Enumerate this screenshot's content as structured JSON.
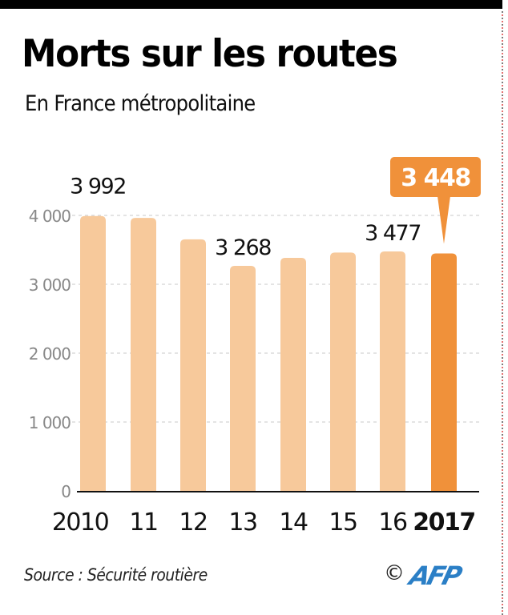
{
  "header": {
    "title": "Morts sur les routes",
    "subtitle": "En France métropolitaine"
  },
  "footer": {
    "source": "Source : Sécurité routière",
    "copyright_symbol": "©",
    "logo_text": "AFP",
    "logo_icon": "afp-logo-icon"
  },
  "colors": {
    "bar": "#f7c99b",
    "highlight": "#f0913a",
    "highlight_label_text": "#ffffff",
    "logo": "#2b7fc6",
    "grid": "#c8c8c8",
    "tick_label": "#888888"
  },
  "chart_data": {
    "type": "bar",
    "title": "Morts sur les routes",
    "subtitle": "En France métropolitaine",
    "xlabel": "",
    "ylabel": "",
    "categories": [
      "2010",
      "11",
      "12",
      "13",
      "14",
      "15",
      "16",
      "2017"
    ],
    "values": [
      3992,
      3963,
      3653,
      3268,
      3384,
      3461,
      3477,
      3448
    ],
    "highlight_index": 7,
    "data_labels": [
      {
        "index": 0,
        "text": "3 992"
      },
      {
        "index": 3,
        "text": "3 268"
      },
      {
        "index": 6,
        "text": "3 477"
      },
      {
        "index": 7,
        "text": "3 448",
        "callout": true
      }
    ],
    "yticks": [
      0,
      1000,
      2000,
      3000,
      4000
    ],
    "ytick_labels": [
      "0",
      "1 000",
      "2 000",
      "3 000",
      "4 000"
    ],
    "ylim": [
      0,
      4000
    ],
    "grid": true,
    "legend": "none",
    "source": "Source : Sécurité routière"
  }
}
